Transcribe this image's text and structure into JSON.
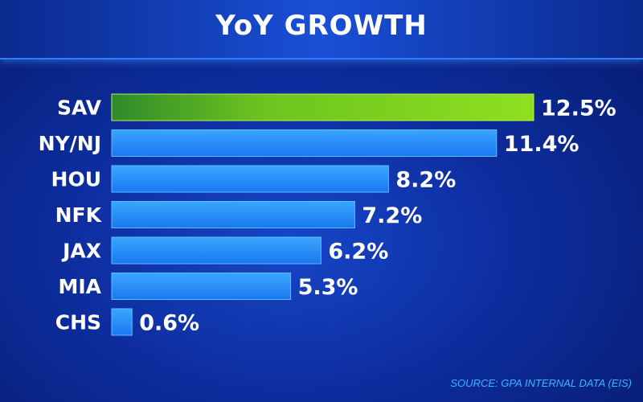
{
  "title": "YoY GROWTH",
  "source": "SOURCE: GPA INTERNAL DATA (EIS)",
  "colors": {
    "bar": "#1e90ff",
    "highlight": "#8ee01f",
    "text": "#ffffff",
    "source": "#38b6ff"
  },
  "chart_data": {
    "type": "bar",
    "orientation": "horizontal",
    "categories": [
      "SAV",
      "NY/NJ",
      "HOU",
      "NFK",
      "JAX",
      "MIA",
      "CHS"
    ],
    "values": [
      12.5,
      11.4,
      8.2,
      7.2,
      6.2,
      5.3,
      0.6
    ],
    "value_labels": [
      "12.5%",
      "11.4%",
      "8.2%",
      "7.2%",
      "6.2%",
      "5.3%",
      "0.6%"
    ],
    "highlight_category": "SAV",
    "unit": "%"
  }
}
